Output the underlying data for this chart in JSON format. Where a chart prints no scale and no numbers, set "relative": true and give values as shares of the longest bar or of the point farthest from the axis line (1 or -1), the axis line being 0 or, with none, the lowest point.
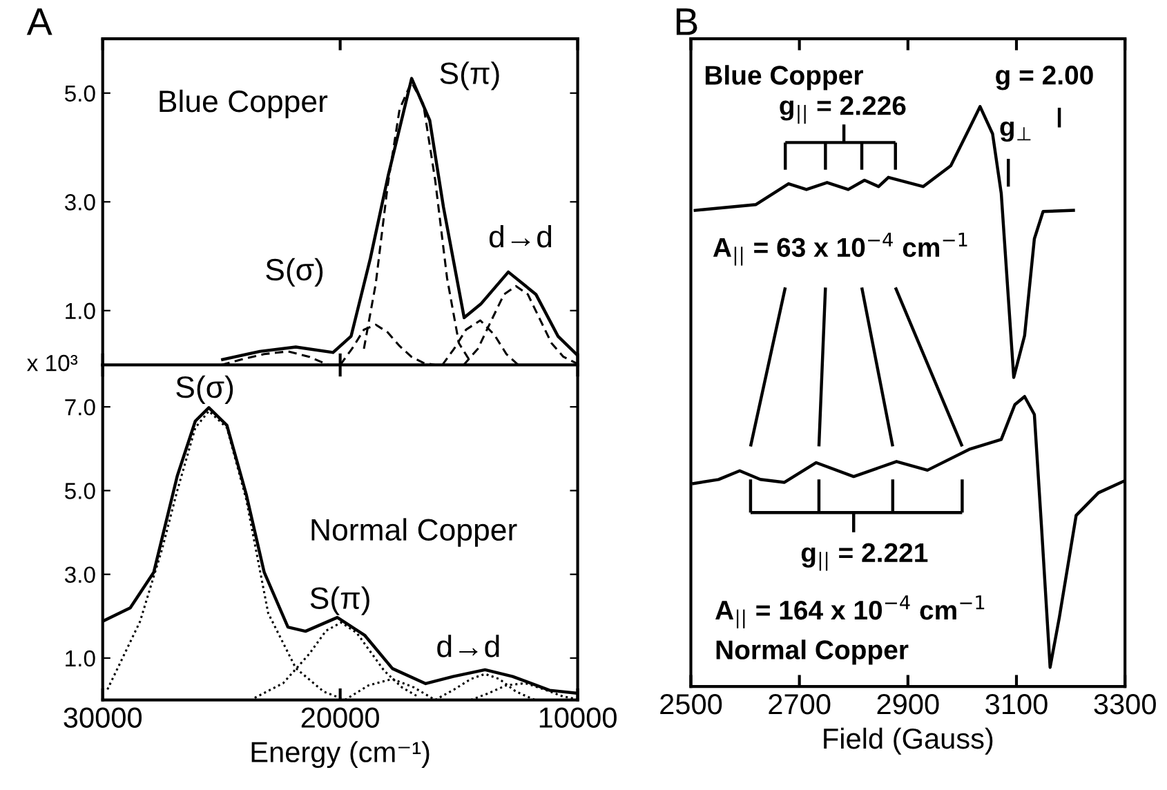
{
  "chart_data": [
    {
      "type": "line",
      "title": "A",
      "ylabel": "x 10³",
      "xlim": [
        30000,
        10000
      ],
      "xticks": [
        30000,
        20000,
        10000
      ],
      "ylim": [
        0,
        6
      ],
      "yticks": [
        {
          "value": 1,
          "label": "1.0"
        },
        {
          "value": 3,
          "label": "3.0"
        },
        {
          "value": 5,
          "label": "5.0"
        }
      ],
      "tick_labels": "y",
      "grid": false,
      "legend": false,
      "annotations": [
        "Blue Copper",
        "S(π)",
        "S(σ)",
        "d→d"
      ],
      "series": [
        {
          "color": "#000000",
          "line_style": "solid",
          "x": [
            24950,
            23380,
            21870,
            20300,
            19540,
            18730,
            17970,
            16990,
            16230,
            15650,
            14780,
            14080,
            12920,
            11760,
            10830,
            10010
          ],
          "values": [
            0.1,
            0.25,
            0.33,
            0.23,
            0.53,
            1.96,
            3.5,
            5.27,
            4.5,
            2.9,
            0.87,
            1.12,
            1.71,
            1.3,
            0.53,
            0.18
          ]
        },
        {
          "color": "#000000",
          "line_style": "dashed",
          "x": [
            19000,
            18500,
            18000,
            17500,
            17000,
            16500,
            16000,
            15500,
            15000,
            14500
          ],
          "values": [
            0.3,
            1.5,
            3.3,
            4.7,
            5.2,
            4.8,
            3.4,
            1.6,
            0.4,
            0.05
          ]
        },
        {
          "color": "#000000",
          "line_style": "dashed",
          "x": [
            20000,
            19500,
            19000,
            18500,
            18000,
            17500,
            17000,
            16500,
            16000
          ],
          "values": [
            0.0,
            0.3,
            0.65,
            0.74,
            0.6,
            0.35,
            0.15,
            0.04,
            0.0
          ]
        },
        {
          "color": "#000000",
          "line_style": "dashed",
          "x": [
            15700,
            15200,
            14700,
            14100,
            13500,
            13000,
            12500
          ],
          "values": [
            0.0,
            0.3,
            0.65,
            0.82,
            0.55,
            0.2,
            0.0
          ]
        },
        {
          "color": "#000000",
          "line_style": "dashed",
          "x": [
            14800,
            14200,
            13600,
            13100,
            12600,
            12100,
            11600,
            11100,
            10600,
            10000
          ],
          "values": [
            0.0,
            0.3,
            0.85,
            1.3,
            1.45,
            1.3,
            0.85,
            0.4,
            0.15,
            0.02
          ]
        },
        {
          "color": "#000000",
          "line_style": "dashed",
          "x": [
            25000,
            24000,
            23200,
            22200,
            21300,
            20500
          ],
          "values": [
            0.0,
            0.12,
            0.2,
            0.25,
            0.15,
            0.0
          ]
        }
      ]
    },
    {
      "type": "line",
      "xlabel": "Energy (cm⁻¹)",
      "xlim": [
        30000,
        10000
      ],
      "xticks": [
        30000,
        20000,
        10000
      ],
      "ylim": [
        0,
        8
      ],
      "yticks": [
        {
          "value": 1,
          "label": "1.0"
        },
        {
          "value": 3,
          "label": "3.0"
        },
        {
          "value": 5,
          "label": "5.0"
        },
        {
          "value": 7,
          "label": "7.0"
        }
      ],
      "grid": false,
      "legend": false,
      "annotations": [
        "S(σ)",
        "Normal Copper",
        "S(π)",
        "d→d"
      ],
      "series": [
        {
          "color": "#000000",
          "line_style": "solid",
          "x": [
            30000,
            28840,
            27850,
            26860,
            26100,
            25530,
            24770,
            23960,
            23200,
            22200,
            21460,
            20120,
            18960,
            17800,
            16400,
            15240,
            13900,
            12740,
            11180,
            10010
          ],
          "values": [
            1.88,
            2.2,
            3.05,
            5.35,
            6.66,
            6.98,
            6.56,
            4.92,
            3.05,
            1.74,
            1.64,
            1.97,
            1.54,
            0.75,
            0.39,
            0.56,
            0.72,
            0.56,
            0.23,
            0.16
          ]
        },
        {
          "color": "#000000",
          "line_style": "dotted",
          "x": [
            29800,
            28430,
            27500,
            26860,
            26100,
            25530,
            24770,
            23960,
            23030,
            21870,
            20700,
            19800
          ],
          "values": [
            0.25,
            1.87,
            3.6,
            5.0,
            6.5,
            6.9,
            6.5,
            4.8,
            2.07,
            0.76,
            0.2,
            0.0
          ]
        },
        {
          "color": "#000000",
          "line_style": "dotted",
          "x": [
            23600,
            22400,
            21300,
            20600,
            19960,
            19300,
            18150,
            17400,
            16790
          ],
          "values": [
            0.05,
            0.4,
            1.1,
            1.65,
            1.85,
            1.6,
            0.7,
            0.3,
            0.1
          ]
        },
        {
          "color": "#000000",
          "line_style": "dotted",
          "x": [
            19800,
            18800,
            17800,
            16900,
            16000
          ],
          "values": [
            0.0,
            0.35,
            0.5,
            0.3,
            0.0
          ]
        },
        {
          "color": "#000000",
          "line_style": "dotted",
          "x": [
            16000,
            15200,
            14500,
            13900,
            13300,
            12600,
            11800
          ],
          "values": [
            0.0,
            0.25,
            0.5,
            0.62,
            0.5,
            0.2,
            0.0
          ]
        },
        {
          "color": "#000000",
          "line_style": "dotted",
          "x": [
            14500,
            13800,
            13000,
            12200,
            11400,
            10600,
            10000
          ],
          "values": [
            0.0,
            0.15,
            0.35,
            0.4,
            0.25,
            0.08,
            0.02
          ]
        }
      ]
    },
    {
      "type": "line",
      "title": "B",
      "xlabel": "Field (Gauss)",
      "relative": true,
      "xlim": [
        2500,
        3300
      ],
      "xticks": [
        2500,
        2700,
        2900,
        3100,
        3300
      ],
      "tick_labels": "x",
      "grid": false,
      "legend": false,
      "annotations": [
        "Blue Copper",
        "g$_{||}$ = 2.226",
        "g = 2.00",
        "g$_{⊥}$",
        "A$_{||}$ = 63 x 10$^{−4}$ cm$^{−1}$",
        "g$_{||}$ = 2.221",
        "A$_{||}$ = 164 x 10$^{−4}$ cm$^{−1}$",
        "Normal Copper"
      ],
      "series": [
        {
          "color": "#000000",
          "line_style": "solid",
          "x": [
            2508,
            2620,
            2680,
            2713,
            2751,
            2790,
            2820,
            2846,
            2864,
            2928,
            2979,
            3013,
            3033,
            3056,
            3072,
            3095,
            3115,
            3133,
            3149,
            3205
          ],
          "values": [
            0.821,
            0.831,
            0.867,
            0.857,
            0.869,
            0.857,
            0.873,
            0.862,
            0.878,
            0.862,
            0.898,
            0.962,
            1.0,
            0.953,
            0.85,
            0.533,
            0.605,
            0.772,
            0.819,
            0.821
          ]
        },
        {
          "color": "#000000",
          "line_style": "solid",
          "x": [
            2505,
            2551,
            2590,
            2628,
            2672,
            2731,
            2800,
            2879,
            2936,
            3013,
            3072,
            3097,
            3115,
            3133,
            3146,
            3162,
            3179,
            3210,
            3251,
            3300
          ],
          "values": [
            0.35,
            0.357,
            0.372,
            0.357,
            0.352,
            0.386,
            0.362,
            0.388,
            0.373,
            0.409,
            0.426,
            0.486,
            0.5,
            0.469,
            0.278,
            0.033,
            0.119,
            0.295,
            0.334,
            0.355
          ]
        }
      ]
    }
  ]
}
